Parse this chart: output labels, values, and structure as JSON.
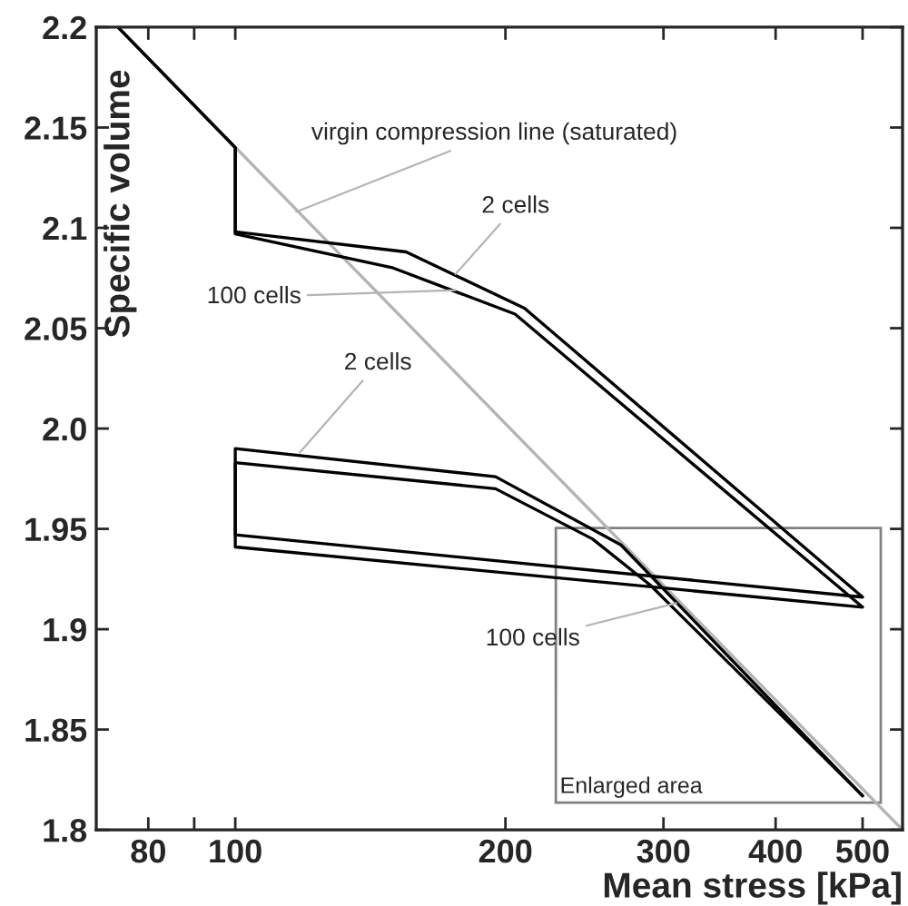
{
  "chart_data": {
    "type": "line",
    "xlabel": "Mean stress [kPa]",
    "ylabel": "Specific volume",
    "log": "x",
    "xlim": [
      70,
      554
    ],
    "ylim": [
      1.8,
      2.2
    ],
    "xticks": [
      80,
      {
        "value": 90,
        "label": null
      },
      100,
      200,
      300,
      400,
      500
    ],
    "yticks": [
      1.8,
      1.85,
      1.9,
      1.95,
      {
        "value": 2.0,
        "label": "2.0"
      },
      2.05,
      2.1,
      2.15,
      2.2
    ],
    "grid": false,
    "legend": false,
    "marker": "none",
    "line_style": "solid",
    "series": [
      {
        "color": "#b4b4b4",
        "x": [
          74,
          554
        ],
        "values": [
          2.2,
          1.8
        ]
      },
      {
        "color": "#000000",
        "x": [
          74,
          100,
          100,
          155,
          210,
          500,
          100,
          100,
          195,
          269,
          500
        ],
        "values": [
          2.2,
          2.14,
          2.098,
          2.088,
          2.06,
          1.916,
          1.947,
          1.99,
          1.976,
          1.942,
          1.817
        ]
      },
      {
        "color": "#000000",
        "x": [
          74,
          100,
          100,
          150,
          205,
          500,
          100,
          100,
          195,
          250,
          290,
          500
        ],
        "values": [
          2.2,
          2.14,
          2.097,
          2.08,
          2.057,
          1.911,
          1.941,
          1.983,
          1.97,
          1.945,
          1.922,
          1.817
        ]
      }
    ],
    "annotations": [
      {
        "text": "virgin compression line (saturated)",
        "x": 117,
        "y": 2.108
      },
      {
        "text": "2 cells",
        "x": 176,
        "y": 2.077
      },
      {
        "text": "100 cells",
        "x": 176,
        "y": 2.069
      },
      {
        "text": "2 cells",
        "x": 118,
        "y": 1.988
      },
      {
        "text": "100 cells",
        "x": 310,
        "y": 1.913
      },
      "Enlarged area"
    ]
  }
}
